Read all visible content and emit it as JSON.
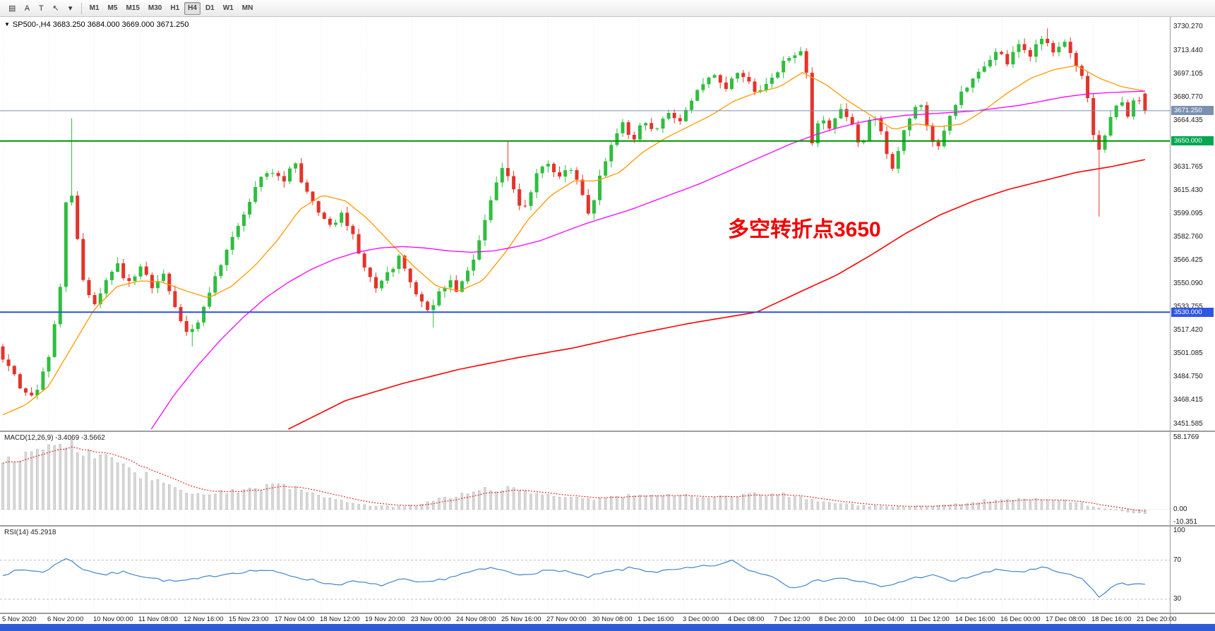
{
  "toolbar": {
    "tools": [
      {
        "name": "charts-list-icon",
        "glyph": "▤"
      },
      {
        "name": "cursor-a-tool",
        "glyph": "A"
      },
      {
        "name": "text-tool",
        "glyph": "T"
      },
      {
        "name": "arrow-tool-icon",
        "glyph": "↖"
      },
      {
        "name": "arrow-dropdown-icon",
        "glyph": "▾"
      }
    ],
    "timeframes": [
      "M1",
      "M5",
      "M15",
      "M30",
      "H1",
      "H4",
      "D1",
      "W1",
      "MN"
    ],
    "active_timeframe": "H4"
  },
  "chart": {
    "collapse_glyph": "▼",
    "symbol_info": "SP500-,H4 3683.250 3684.000 3669.000 3671.250",
    "annotation": {
      "text": "多空转折点3650",
      "color": "#f20000"
    },
    "price_axis_labels": [
      "3730.270",
      "3713.440",
      "3697.105",
      "3680.770",
      "3664.435",
      "3631.765",
      "3615.430",
      "3599.095",
      "3582.760",
      "3566.425",
      "3550.090",
      "3533.755",
      "3517.420",
      "3501.085",
      "3484.750",
      "3468.415",
      "3451.585"
    ],
    "tags": [
      {
        "name": "current",
        "label": "3671.250",
        "price": 3671.25,
        "bg": "#7b90b2"
      },
      {
        "name": "green-level",
        "label": "3650.000",
        "price": 3650.0,
        "bg": "#00a651"
      },
      {
        "name": "blue-level",
        "label": "3530.000",
        "price": 3530.0,
        "bg": "#2f55e3"
      }
    ],
    "colors": {
      "up": "#2fbe3f",
      "down": "#e3342a",
      "ma_fast": "#ff9900",
      "ma_mid": "#ff00ff",
      "ma_slow": "#ff0000",
      "level_green": "#009100",
      "level_blue": "#2b50e0",
      "bid_line": "#7b90b2",
      "rsi": "#3f86c8",
      "rsi_levels": "#bdbdbd",
      "macd_signal": "#e03030",
      "macd_bar": "#d9d9d9",
      "macd_bar_edge": "#b2b2b2"
    }
  },
  "macd": {
    "label": "MACD(12,26,9) -3.4069 -3.5662",
    "axis": [
      {
        "label": "58.1769",
        "value": 58.1769
      },
      {
        "label": "0.00",
        "value": 0
      },
      {
        "label": "-10.351",
        "value": -10.351
      }
    ]
  },
  "rsi": {
    "label": "RSI(14) 45.2918",
    "axis": [
      {
        "label": "100",
        "value": 100
      },
      {
        "label": "70",
        "value": 70
      },
      {
        "label": "30",
        "value": 30
      }
    ],
    "levels": [
      70,
      30
    ]
  },
  "time_axis": [
    "5 Nov 2020",
    "6 Nov 20:00",
    "10 Nov 00:00",
    "11 Nov 08:00",
    "12 Nov 16:00",
    "15 Nov 23:00",
    "17 Nov 04:00",
    "18 Nov 12:00",
    "19 Nov 20:00",
    "23 Nov 00:00",
    "24 Nov 08:00",
    "25 Nov 16:00",
    "27 Nov 00:00",
    "30 Nov 08:00",
    "1 Dec 16:00",
    "3 Dec 00:00",
    "4 Dec 08:00",
    "7 Dec 12:00",
    "8 Dec 20:00",
    "10 Dec 04:00",
    "11 Dec 12:00",
    "14 Dec 16:00",
    "16 Dec 00:00",
    "17 Dec 08:00",
    "18 Dec 16:00",
    "21 Dec 20:00"
  ],
  "chart_data": {
    "type": "candlestick",
    "title": "SP500- H4 with MACD(12,26,9) and RSI(14)",
    "ohlc_display": {
      "open": 3683.25,
      "high": 3684.0,
      "low": 3669.0,
      "close": 3671.25
    },
    "current_price": 3671.25,
    "ylim": [
      3447,
      3737
    ],
    "levels": {
      "horizontal_green": 3650.0,
      "horizontal_blue": 3530.0
    },
    "candle_count": 200,
    "price_path": [
      [
        0,
        3506
      ],
      [
        0.01,
        3492
      ],
      [
        0.02,
        3478
      ],
      [
        0.03,
        3470
      ],
      [
        0.038,
        3482
      ],
      [
        0.046,
        3500
      ],
      [
        0.055,
        3548
      ],
      [
        0.062,
        3628
      ],
      [
        0.068,
        3595
      ],
      [
        0.075,
        3552
      ],
      [
        0.085,
        3535
      ],
      [
        0.095,
        3550
      ],
      [
        0.105,
        3562
      ],
      [
        0.115,
        3550
      ],
      [
        0.125,
        3560
      ],
      [
        0.135,
        3548
      ],
      [
        0.145,
        3555
      ],
      [
        0.155,
        3535
      ],
      [
        0.165,
        3515
      ],
      [
        0.175,
        3522
      ],
      [
        0.185,
        3545
      ],
      [
        0.2,
        3572
      ],
      [
        0.215,
        3600
      ],
      [
        0.228,
        3625
      ],
      [
        0.238,
        3632
      ],
      [
        0.248,
        3620
      ],
      [
        0.258,
        3636
      ],
      [
        0.268,
        3618
      ],
      [
        0.28,
        3598
      ],
      [
        0.292,
        3590
      ],
      [
        0.3,
        3600
      ],
      [
        0.31,
        3585
      ],
      [
        0.32,
        3562
      ],
      [
        0.33,
        3548
      ],
      [
        0.34,
        3556
      ],
      [
        0.35,
        3568
      ],
      [
        0.358,
        3555
      ],
      [
        0.366,
        3542
      ],
      [
        0.374,
        3528
      ],
      [
        0.382,
        3538
      ],
      [
        0.392,
        3552
      ],
      [
        0.402,
        3545
      ],
      [
        0.412,
        3560
      ],
      [
        0.422,
        3588
      ],
      [
        0.432,
        3612
      ],
      [
        0.44,
        3632
      ],
      [
        0.45,
        3615
      ],
      [
        0.458,
        3602
      ],
      [
        0.468,
        3622
      ],
      [
        0.478,
        3638
      ],
      [
        0.488,
        3625
      ],
      [
        0.498,
        3635
      ],
      [
        0.508,
        3618
      ],
      [
        0.516,
        3598
      ],
      [
        0.524,
        3622
      ],
      [
        0.534,
        3648
      ],
      [
        0.544,
        3662
      ],
      [
        0.554,
        3652
      ],
      [
        0.564,
        3665
      ],
      [
        0.574,
        3656
      ],
      [
        0.584,
        3670
      ],
      [
        0.594,
        3662
      ],
      [
        0.604,
        3676
      ],
      [
        0.614,
        3690
      ],
      [
        0.624,
        3698
      ],
      [
        0.634,
        3686
      ],
      [
        0.644,
        3696
      ],
      [
        0.654,
        3690
      ],
      [
        0.664,
        3682
      ],
      [
        0.674,
        3694
      ],
      [
        0.684,
        3704
      ],
      [
        0.694,
        3712
      ],
      [
        0.7,
        3714
      ],
      [
        0.706,
        3692
      ],
      [
        0.71,
        3648
      ],
      [
        0.716,
        3668
      ],
      [
        0.726,
        3660
      ],
      [
        0.736,
        3672
      ],
      [
        0.746,
        3660
      ],
      [
        0.752,
        3646
      ],
      [
        0.762,
        3668
      ],
      [
        0.772,
        3654
      ],
      [
        0.778,
        3628
      ],
      [
        0.786,
        3648
      ],
      [
        0.796,
        3668
      ],
      [
        0.806,
        3678
      ],
      [
        0.812,
        3652
      ],
      [
        0.82,
        3648
      ],
      [
        0.83,
        3668
      ],
      [
        0.84,
        3684
      ],
      [
        0.85,
        3692
      ],
      [
        0.86,
        3702
      ],
      [
        0.87,
        3714
      ],
      [
        0.88,
        3706
      ],
      [
        0.89,
        3716
      ],
      [
        0.9,
        3710
      ],
      [
        0.91,
        3724
      ],
      [
        0.92,
        3712
      ],
      [
        0.93,
        3720
      ],
      [
        0.94,
        3702
      ],
      [
        0.948,
        3690
      ],
      [
        0.956,
        3648
      ],
      [
        0.962,
        3642
      ],
      [
        0.97,
        3668
      ],
      [
        0.978,
        3680
      ],
      [
        0.986,
        3668
      ],
      [
        0.993,
        3682
      ],
      [
        1,
        3671.25
      ]
    ],
    "wicks": [
      {
        "t": 0.062,
        "high": 3666
      },
      {
        "t": 0.165,
        "low": 3506
      },
      {
        "t": 0.374,
        "low": 3519
      },
      {
        "t": 0.44,
        "high": 3650
      },
      {
        "t": 0.91,
        "high": 3729
      },
      {
        "t": 0.957,
        "low": 3597
      }
    ],
    "ma_fast_path": [
      [
        0,
        3458
      ],
      [
        0.02,
        3465
      ],
      [
        0.04,
        3478
      ],
      [
        0.06,
        3505
      ],
      [
        0.08,
        3532
      ],
      [
        0.1,
        3548
      ],
      [
        0.12,
        3552
      ],
      [
        0.14,
        3551
      ],
      [
        0.16,
        3545
      ],
      [
        0.18,
        3540
      ],
      [
        0.2,
        3548
      ],
      [
        0.22,
        3562
      ],
      [
        0.24,
        3580
      ],
      [
        0.26,
        3602
      ],
      [
        0.28,
        3612
      ],
      [
        0.3,
        3608
      ],
      [
        0.32,
        3595
      ],
      [
        0.34,
        3578
      ],
      [
        0.36,
        3562
      ],
      [
        0.38,
        3548
      ],
      [
        0.4,
        3545
      ],
      [
        0.42,
        3552
      ],
      [
        0.44,
        3572
      ],
      [
        0.46,
        3595
      ],
      [
        0.48,
        3612
      ],
      [
        0.5,
        3622
      ],
      [
        0.52,
        3622
      ],
      [
        0.54,
        3628
      ],
      [
        0.56,
        3642
      ],
      [
        0.58,
        3652
      ],
      [
        0.6,
        3660
      ],
      [
        0.62,
        3668
      ],
      [
        0.64,
        3678
      ],
      [
        0.66,
        3684
      ],
      [
        0.68,
        3688
      ],
      [
        0.7,
        3698
      ],
      [
        0.72,
        3690
      ],
      [
        0.74,
        3678
      ],
      [
        0.76,
        3668
      ],
      [
        0.78,
        3658
      ],
      [
        0.8,
        3662
      ],
      [
        0.82,
        3660
      ],
      [
        0.84,
        3662
      ],
      [
        0.86,
        3672
      ],
      [
        0.88,
        3684
      ],
      [
        0.9,
        3694
      ],
      [
        0.92,
        3700
      ],
      [
        0.94,
        3703
      ],
      [
        0.96,
        3694
      ],
      [
        0.98,
        3688
      ],
      [
        1,
        3685
      ]
    ],
    "ma_mid_path": [
      [
        0.13,
        3448
      ],
      [
        0.15,
        3472
      ],
      [
        0.17,
        3492
      ],
      [
        0.19,
        3510
      ],
      [
        0.21,
        3526
      ],
      [
        0.23,
        3540
      ],
      [
        0.25,
        3551
      ],
      [
        0.27,
        3560
      ],
      [
        0.29,
        3567
      ],
      [
        0.31,
        3572
      ],
      [
        0.33,
        3575
      ],
      [
        0.35,
        3576
      ],
      [
        0.37,
        3575
      ],
      [
        0.39,
        3573
      ],
      [
        0.41,
        3572
      ],
      [
        0.43,
        3573
      ],
      [
        0.45,
        3576
      ],
      [
        0.47,
        3580
      ],
      [
        0.49,
        3586
      ],
      [
        0.51,
        3592
      ],
      [
        0.53,
        3597
      ],
      [
        0.55,
        3602
      ],
      [
        0.57,
        3608
      ],
      [
        0.59,
        3614
      ],
      [
        0.61,
        3620
      ],
      [
        0.63,
        3627
      ],
      [
        0.65,
        3634
      ],
      [
        0.67,
        3641
      ],
      [
        0.69,
        3648
      ],
      [
        0.71,
        3654
      ],
      [
        0.73,
        3659
      ],
      [
        0.75,
        3663
      ],
      [
        0.77,
        3666
      ],
      [
        0.79,
        3668
      ],
      [
        0.81,
        3669
      ],
      [
        0.83,
        3670
      ],
      [
        0.85,
        3671
      ],
      [
        0.87,
        3673
      ],
      [
        0.89,
        3675
      ],
      [
        0.91,
        3678
      ],
      [
        0.93,
        3681
      ],
      [
        0.95,
        3683
      ],
      [
        0.97,
        3684
      ],
      [
        1,
        3685
      ]
    ],
    "ma_slow_path": [
      [
        0.25,
        3448
      ],
      [
        0.3,
        3468
      ],
      [
        0.35,
        3480
      ],
      [
        0.4,
        3490
      ],
      [
        0.45,
        3498
      ],
      [
        0.5,
        3505
      ],
      [
        0.55,
        3514
      ],
      [
        0.6,
        3522
      ],
      [
        0.63,
        3526
      ],
      [
        0.66,
        3530
      ],
      [
        0.7,
        3545
      ],
      [
        0.73,
        3556
      ],
      [
        0.76,
        3570
      ],
      [
        0.79,
        3585
      ],
      [
        0.82,
        3598
      ],
      [
        0.85,
        3608
      ],
      [
        0.88,
        3616
      ],
      [
        0.91,
        3622
      ],
      [
        0.94,
        3628
      ],
      [
        0.97,
        3632
      ],
      [
        1,
        3637
      ]
    ],
    "macd": {
      "ylim": [
        -10.351,
        58.1769
      ],
      "last": -3.4069,
      "signal_last": -3.5662,
      "path": [
        [
          0,
          38
        ],
        [
          0.02,
          46
        ],
        [
          0.04,
          52
        ],
        [
          0.06,
          50
        ],
        [
          0.08,
          44
        ],
        [
          0.1,
          37
        ],
        [
          0.12,
          29
        ],
        [
          0.14,
          21
        ],
        [
          0.16,
          14
        ],
        [
          0.18,
          11
        ],
        [
          0.2,
          14
        ],
        [
          0.22,
          17
        ],
        [
          0.24,
          19
        ],
        [
          0.26,
          17
        ],
        [
          0.28,
          11
        ],
        [
          0.3,
          6
        ],
        [
          0.32,
          3
        ],
        [
          0.34,
          2
        ],
        [
          0.36,
          3
        ],
        [
          0.38,
          7
        ],
        [
          0.4,
          12
        ],
        [
          0.42,
          16
        ],
        [
          0.44,
          17
        ],
        [
          0.46,
          14
        ],
        [
          0.48,
          11
        ],
        [
          0.5,
          9
        ],
        [
          0.52,
          8
        ],
        [
          0.54,
          10
        ],
        [
          0.56,
          12
        ],
        [
          0.58,
          12
        ],
        [
          0.6,
          11
        ],
        [
          0.62,
          10
        ],
        [
          0.64,
          11
        ],
        [
          0.66,
          12
        ],
        [
          0.68,
          12
        ],
        [
          0.7,
          9
        ],
        [
          0.72,
          5
        ],
        [
          0.74,
          4
        ],
        [
          0.76,
          3
        ],
        [
          0.78,
          2
        ],
        [
          0.8,
          2
        ],
        [
          0.82,
          3
        ],
        [
          0.84,
          5
        ],
        [
          0.86,
          7
        ],
        [
          0.88,
          8
        ],
        [
          0.9,
          8
        ],
        [
          0.92,
          7
        ],
        [
          0.94,
          5
        ],
        [
          0.96,
          1
        ],
        [
          0.98,
          -2
        ],
        [
          1,
          -3.4
        ]
      ]
    },
    "rsi": {
      "ylim": [
        0,
        100
      ],
      "last": 45.2918,
      "path": [
        [
          0,
          55
        ],
        [
          0.02,
          60
        ],
        [
          0.04,
          58
        ],
        [
          0.057,
          73
        ],
        [
          0.07,
          62
        ],
        [
          0.09,
          55
        ],
        [
          0.11,
          58
        ],
        [
          0.13,
          52
        ],
        [
          0.15,
          48
        ],
        [
          0.17,
          50
        ],
        [
          0.19,
          55
        ],
        [
          0.21,
          58
        ],
        [
          0.23,
          60
        ],
        [
          0.25,
          55
        ],
        [
          0.27,
          50
        ],
        [
          0.29,
          45
        ],
        [
          0.31,
          48
        ],
        [
          0.33,
          44
        ],
        [
          0.35,
          50
        ],
        [
          0.37,
          46
        ],
        [
          0.39,
          52
        ],
        [
          0.41,
          58
        ],
        [
          0.43,
          62
        ],
        [
          0.45,
          55
        ],
        [
          0.47,
          58
        ],
        [
          0.49,
          60
        ],
        [
          0.51,
          52
        ],
        [
          0.53,
          58
        ],
        [
          0.55,
          62
        ],
        [
          0.57,
          58
        ],
        [
          0.59,
          60
        ],
        [
          0.61,
          63
        ],
        [
          0.63,
          66
        ],
        [
          0.64,
          70
        ],
        [
          0.65,
          60
        ],
        [
          0.67,
          55
        ],
        [
          0.69,
          42
        ],
        [
          0.71,
          48
        ],
        [
          0.73,
          52
        ],
        [
          0.75,
          48
        ],
        [
          0.77,
          42
        ],
        [
          0.79,
          50
        ],
        [
          0.81,
          55
        ],
        [
          0.83,
          48
        ],
        [
          0.85,
          55
        ],
        [
          0.87,
          60
        ],
        [
          0.89,
          58
        ],
        [
          0.91,
          62
        ],
        [
          0.93,
          55
        ],
        [
          0.945,
          50
        ],
        [
          0.957,
          32
        ],
        [
          0.965,
          38
        ],
        [
          0.975,
          48
        ],
        [
          0.985,
          45
        ],
        [
          1,
          45.3
        ]
      ]
    }
  }
}
